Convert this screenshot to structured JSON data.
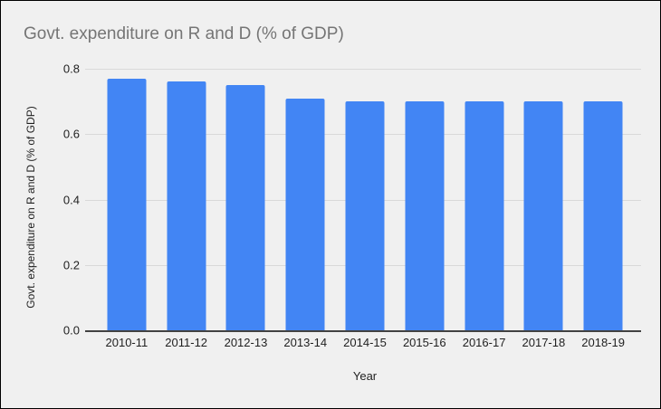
{
  "chart_data": {
    "type": "bar",
    "title": "Govt. expenditure on R and D (% of GDP)",
    "xlabel": "Year",
    "ylabel": "Govt. expenditure on R and D (% of GDP)",
    "categories": [
      "2010-11",
      "2011-12",
      "2012-13",
      "2013-14",
      "2014-15",
      "2015-16",
      "2016-17",
      "2017-18",
      "2018-19"
    ],
    "values": [
      0.77,
      0.76,
      0.75,
      0.71,
      0.7,
      0.7,
      0.7,
      0.7,
      0.7
    ],
    "ylim": [
      0,
      0.8
    ],
    "yticks": [
      0.0,
      0.2,
      0.4,
      0.6,
      0.8
    ],
    "ytick_format_decimals": 1,
    "grid": true,
    "legend": "none",
    "bar_color": "#4285f4",
    "background_color": "#f0f0f0",
    "title_color": "#757575",
    "gridline_color": "#d9d9d9",
    "axis_line_color": "#424242",
    "label_color": "#1f1f1f"
  }
}
